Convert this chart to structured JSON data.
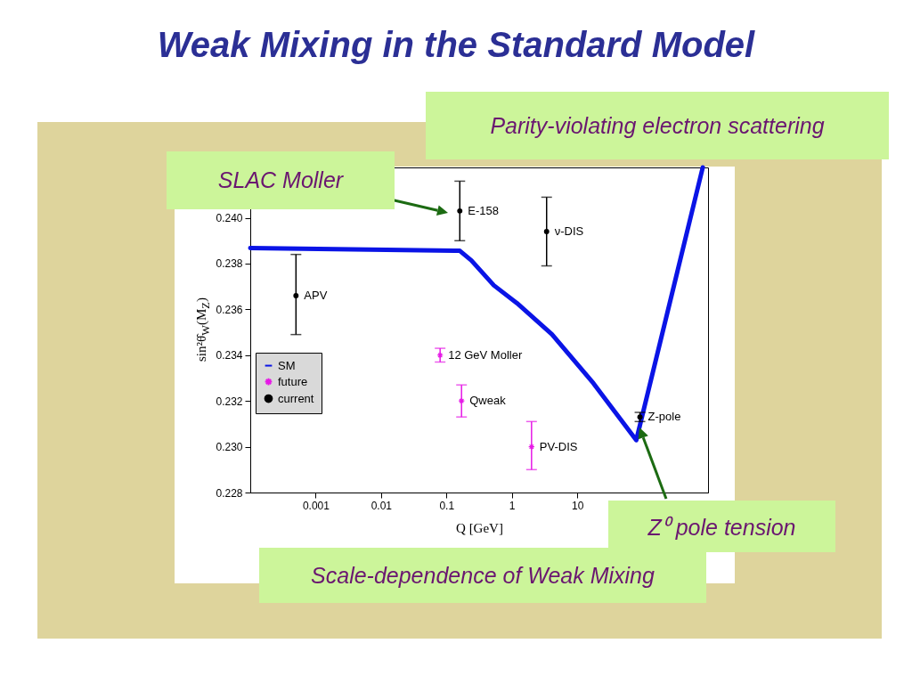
{
  "chart_data": {
    "type": "scatter",
    "title": "Weak Mixing in the Standard Model",
    "xlabel": "Q [GeV]",
    "ylabel": "sin²θ̂$_{W}$(M$_{Z}$)",
    "log": "x",
    "xlim": [
      0.0001,
      1000
    ],
    "xticks": [
      0.001,
      0.01,
      0.1,
      1,
      10
    ],
    "ylim": [
      0.228,
      0.2422
    ],
    "yticks": [
      0.228,
      {
        "value": 0.23,
        "label": "0.230"
      },
      0.232,
      0.234,
      0.236,
      0.238,
      {
        "value": 0.24,
        "label": "0.240"
      }
    ],
    "legend": "left",
    "series": [
      {
        "name": "SM",
        "type": "line",
        "color": "#0a14e6",
        "x": [
          0.0001,
          0.16,
          0.24,
          0.53,
          1.2,
          4.1,
          17.6,
          80,
          830
        ],
        "values": [
          0.23868,
          0.23856,
          0.23814,
          0.23705,
          0.23627,
          0.23491,
          0.23278,
          0.23029,
          0.2422
        ]
      },
      {
        "name": "future",
        "marker": "cross",
        "color": "#e619e6",
        "x": [
          0.08,
          0.17,
          2
        ],
        "values": [
          0.234,
          0.232,
          0.23
        ],
        "errors": [
          [
            0.2337,
            0.2343
          ],
          [
            0.2313,
            0.2327
          ],
          [
            0.229,
            0.2311
          ]
        ]
      },
      {
        "name": "current",
        "marker": "circle",
        "color": "#000000",
        "x": [
          0.0005,
          0.16,
          3.4,
          91
        ],
        "values": [
          0.2366,
          0.2403,
          0.2394,
          0.2313
        ],
        "errors": [
          [
            0.2349,
            0.2384
          ],
          [
            0.239,
            0.2416
          ],
          [
            0.2379,
            0.2409
          ],
          [
            0.2311,
            0.2315
          ]
        ]
      }
    ],
    "annotations": [
      "Parity-violating electron scattering",
      "SLAC Moller",
      "Z⁰ pole tension",
      "Scale-dependence of Weak Mixing",
      {
        "text": "APV",
        "x": 0.0005,
        "y": 0.2366
      },
      {
        "text": "E-158",
        "x": 0.16,
        "y": 0.2403
      },
      {
        "text": "ν-DIS",
        "x": 3.4,
        "y": 0.2394
      },
      {
        "text": "12 GeV Moller",
        "x": 0.08,
        "y": 0.234
      },
      {
        "text": "Qweak",
        "x": 0.17,
        "y": 0.232
      },
      {
        "text": "PV-DIS",
        "x": 2,
        "y": 0.23
      },
      {
        "text": "Z-pole",
        "x": 91,
        "y": 0.2313
      }
    ]
  }
}
